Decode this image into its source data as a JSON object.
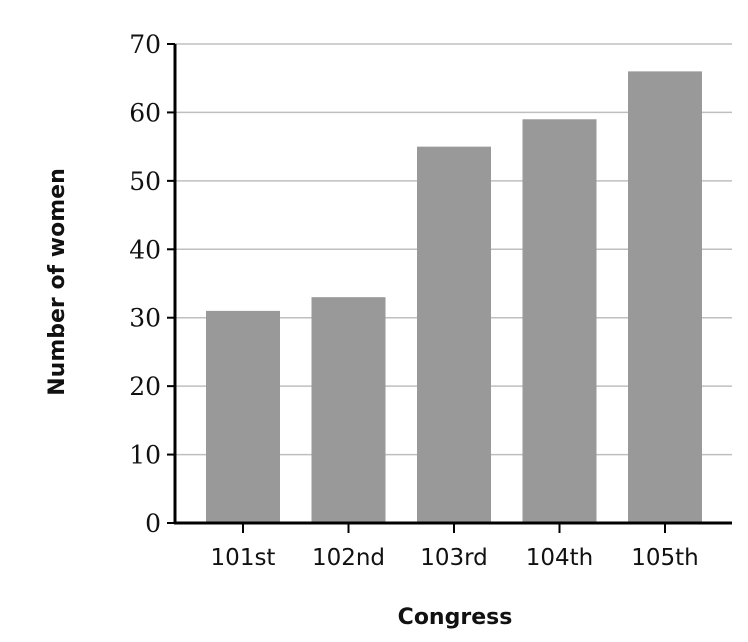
{
  "chart_data": {
    "type": "bar",
    "categories": [
      "101st",
      "102nd",
      "103rd",
      "104th",
      "105th"
    ],
    "values": [
      31,
      33,
      55,
      59,
      66
    ],
    "title": "",
    "xlabel": "Congress",
    "ylabel": "Number of women",
    "ylim": [
      0,
      70
    ],
    "yticks": [
      0,
      10,
      20,
      30,
      40,
      50,
      60,
      70
    ],
    "grid": true,
    "bar_color": "#999999",
    "grid_color": "#bfbfbf",
    "axis_color": "#000000"
  }
}
